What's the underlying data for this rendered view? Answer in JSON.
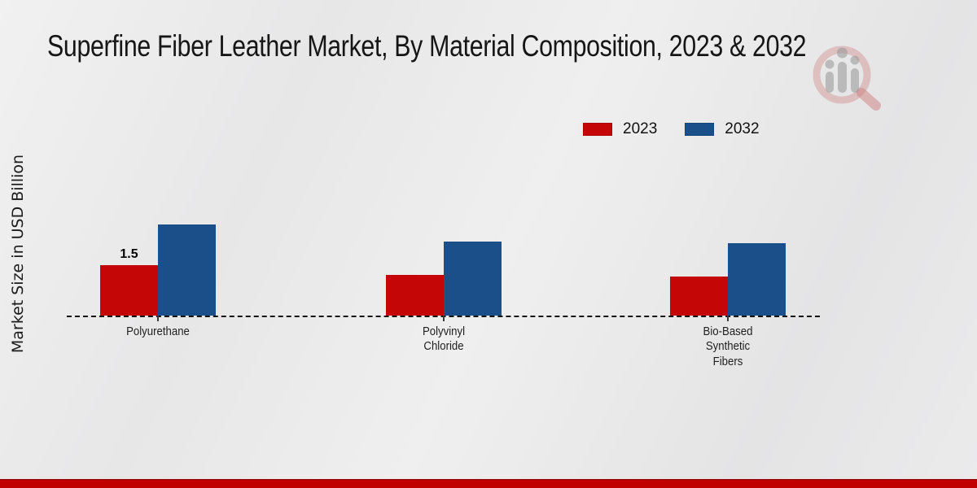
{
  "title": "Superfine Fiber Leather Market, By Material Composition, 2023 & 2032",
  "y_axis_label": "Market Size in USD Billion",
  "footer": {
    "accent_color": "#c00000"
  },
  "watermark": {
    "icon": "magnifier-bar-chart-logo"
  },
  "chart_data": {
    "type": "bar",
    "title": "Superfine Fiber Leather Market, By Material Composition, 2023 & 2032",
    "xlabel": "",
    "ylabel": "Market Size in USD Billion",
    "categories": [
      "Polyurethane",
      "Polyvinyl Chloride",
      "Bio-Based Synthetic Fibers"
    ],
    "category_display": [
      "Polyurethane",
      "Polyvinyl\nChloride",
      "Bio-Based\nSynthetic\nFibers"
    ],
    "series": [
      {
        "name": "2023",
        "color": "#c40606",
        "values": [
          1.5,
          1.2,
          1.15
        ],
        "data_labels": [
          "1.5",
          "",
          ""
        ]
      },
      {
        "name": "2032",
        "color": "#1b4f8a",
        "values": [
          2.7,
          2.2,
          2.15
        ],
        "data_labels": [
          "",
          "",
          ""
        ]
      }
    ],
    "ylim": [
      0,
      3
    ],
    "gridlines": false,
    "y_tick_labels_visible": false,
    "legend_position": "top-right",
    "baseline_style": "dashed"
  }
}
